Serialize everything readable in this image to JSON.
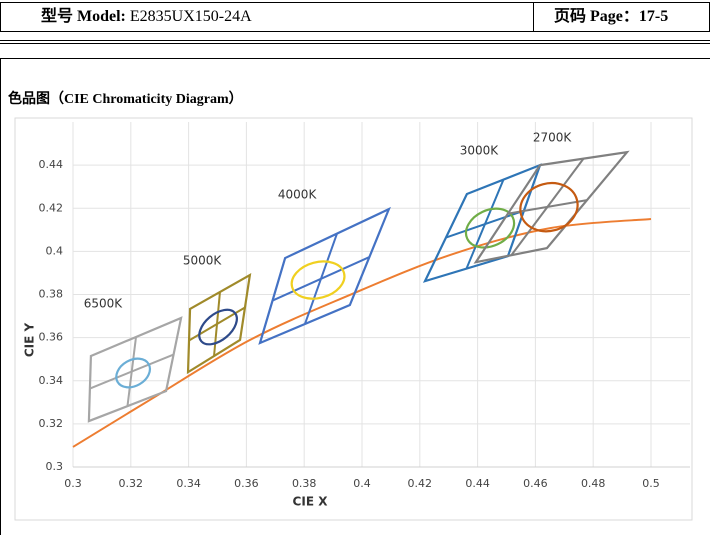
{
  "header": {
    "model_label": "型号 Model:",
    "model_value": "E2835UX150-24A",
    "page_label": "页码 Page：",
    "page_value": "17-5"
  },
  "section_title": "色品图（CIE Chromaticity Diagram）",
  "chart_data": {
    "type": "cie",
    "xlabel": "CIE X",
    "ylabel": "CIE Y",
    "xlim": [
      0.3,
      0.5
    ],
    "xticks": [
      0.3,
      0.32,
      0.34,
      0.36,
      0.38,
      0.4,
      0.42,
      0.44,
      0.46,
      0.48,
      0.5
    ],
    "ylim": [
      0.3,
      0.46
    ],
    "yticks": [
      0.3,
      0.32,
      0.34,
      0.36,
      0.38,
      0.4,
      0.42,
      0.44
    ],
    "grid": true,
    "bins": [
      {
        "name": "6500K",
        "color": "#a6a6a6",
        "x": [
          0.3062,
          0.3374,
          0.3322,
          0.3055
        ],
        "y": [
          0.3515,
          0.3691,
          0.3352,
          0.3213
        ],
        "ellipse": {
          "color": "#6baed6",
          "cx": 0.3208,
          "cy": 0.3436,
          "rx": 0.0062,
          "ry": 0.006,
          "angle": -30
        }
      },
      {
        "name": "5000K",
        "color": "#a08a2a",
        "x": [
          0.3405,
          0.3612,
          0.3578,
          0.3398
        ],
        "y": [
          0.3733,
          0.389,
          0.3589,
          0.344
        ],
        "ellipse": {
          "color": "#2e4a8a",
          "cx": 0.3502,
          "cy": 0.3649,
          "rx": 0.0076,
          "ry": 0.006,
          "angle": -40
        }
      },
      {
        "name": "4000K",
        "color": "#4472c4",
        "x": [
          0.3734,
          0.4093,
          0.3958,
          0.3647
        ],
        "y": [
          0.3969,
          0.4196,
          0.3751,
          0.3575
        ],
        "ellipse": {
          "color": "#f0d020",
          "cx": 0.3848,
          "cy": 0.3867,
          "rx": 0.0093,
          "ry": 0.0083,
          "angle": -15
        }
      },
      {
        "name": "3000K",
        "color": "#2e75b6",
        "x": [
          0.4363,
          0.4616,
          0.4505,
          0.4218
        ],
        "y": [
          0.4266,
          0.44,
          0.3978,
          0.3862
        ],
        "ellipse": {
          "color": "#70ad47",
          "cx": 0.4443,
          "cy": 0.4108,
          "rx": 0.0087,
          "ry": 0.0083,
          "angle": -25
        }
      },
      {
        "name": "2700K",
        "color": "#808080",
        "x": [
          0.4616,
          0.4917,
          0.464,
          0.4394
        ],
        "y": [
          0.44,
          0.446,
          0.4015,
          0.395
        ],
        "ellipse": {
          "color": "#c55a11",
          "cx": 0.4647,
          "cy": 0.4205,
          "rx": 0.01,
          "ry": 0.011,
          "angle": -15
        }
      }
    ],
    "locus": {
      "color": "#ed7d31",
      "x": [
        0.3,
        0.3266,
        0.3612,
        0.3958,
        0.4304,
        0.4651,
        0.5
      ],
      "y": [
        0.3093,
        0.3311,
        0.3589,
        0.3798,
        0.3983,
        0.4108,
        0.415
      ]
    }
  }
}
